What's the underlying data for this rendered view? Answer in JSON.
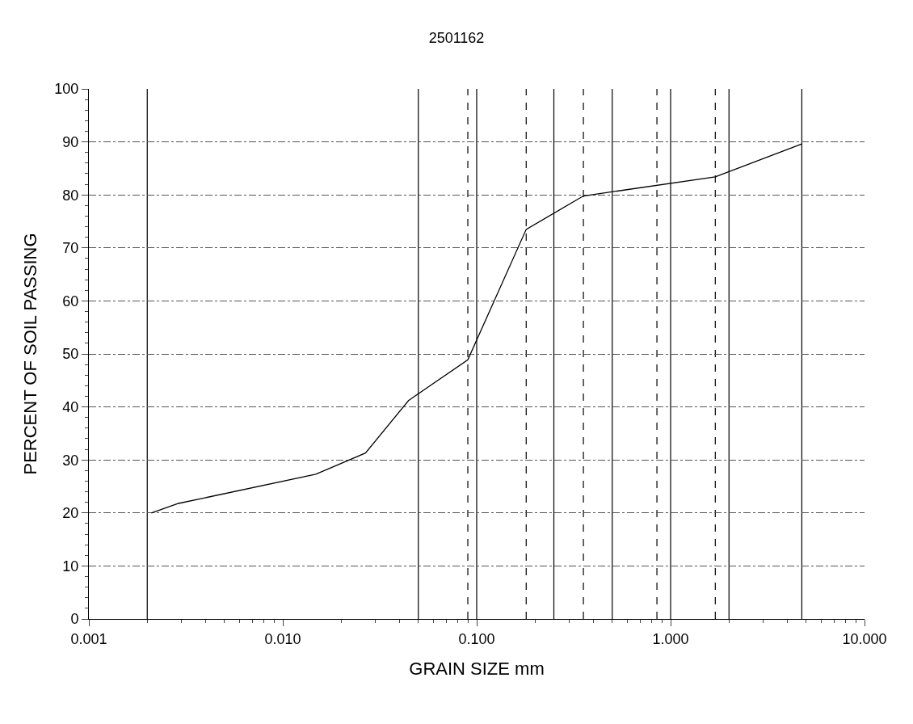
{
  "chart_data": {
    "type": "line",
    "title": "2501162",
    "xlabel": "GRAIN SIZE mm",
    "ylabel": "PERCENT OF SOIL PASSING",
    "log": "x",
    "grid": "y",
    "marker": "none",
    "line_style": "solid",
    "xlim": [
      0.001,
      10
    ],
    "ylim": [
      0,
      100
    ],
    "xticks": [
      {
        "value": 0.001,
        "label": "0.001"
      },
      {
        "value": 0.01,
        "label": "0.010"
      },
      {
        "value": 0.1,
        "label": "0.100"
      },
      {
        "value": 1,
        "label": "1.000"
      },
      {
        "value": 10,
        "label": "10.000"
      }
    ],
    "yticks": [
      0,
      10,
      20,
      30,
      40,
      50,
      60,
      70,
      80,
      90,
      100
    ],
    "series": [
      {
        "color": "#000000",
        "x": [
          0.0021,
          0.0029,
          0.0148,
          0.0267,
          0.0445,
          0.09,
          0.18,
          0.355,
          1.7,
          4.75
        ],
        "values": [
          20,
          21.8,
          27.3,
          31.3,
          41.2,
          48.9,
          73.5,
          79.8,
          83.4,
          89.6
        ]
      }
    ],
    "ref_lines": [
      {
        "axis": "x",
        "value": 0.002,
        "color": "#000000",
        "line_style": "solid"
      },
      {
        "axis": "x",
        "value": 0.05,
        "color": "#000000",
        "line_style": "solid"
      },
      {
        "axis": "x",
        "value": 0.1,
        "color": "#000000",
        "line_style": "solid"
      },
      {
        "axis": "x",
        "value": 0.25,
        "color": "#000000",
        "line_style": "solid"
      },
      {
        "axis": "x",
        "value": 0.5,
        "color": "#000000",
        "line_style": "solid"
      },
      {
        "axis": "x",
        "value": 1,
        "color": "#000000",
        "line_style": "solid"
      },
      {
        "axis": "x",
        "value": 2,
        "color": "#000000",
        "line_style": "solid"
      },
      {
        "axis": "x",
        "value": 4.75,
        "color": "#000000",
        "line_style": "solid"
      },
      {
        "axis": "x",
        "value": 0.09,
        "color": "#000000",
        "line_style": "dashed"
      },
      {
        "axis": "x",
        "value": 0.18,
        "color": "#000000",
        "line_style": "dashed"
      },
      {
        "axis": "x",
        "value": 0.355,
        "color": "#000000",
        "line_style": "dashed"
      },
      {
        "axis": "x",
        "value": 0.85,
        "color": "#000000",
        "line_style": "dashed"
      },
      {
        "axis": "x",
        "value": 1.7,
        "color": "#000000",
        "line_style": "dashed"
      }
    ]
  }
}
